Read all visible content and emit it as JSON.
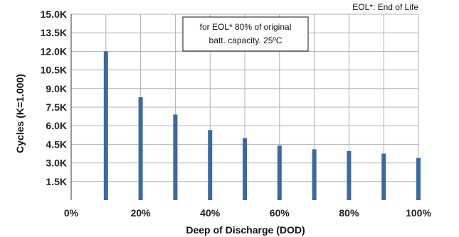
{
  "chart_data": {
    "type": "bar",
    "xlabel": "Deep of Discharge (DOD)",
    "ylabel": "Cycles (K=1.000)",
    "x_ticks": [
      "0%",
      "20%",
      "40%",
      "60%",
      "80%",
      "100%"
    ],
    "y_ticks": [
      "15.0K",
      "13.5K",
      "12.0K",
      "10.5K",
      "9.0K",
      "7.5K",
      "6.0K",
      "4.5K",
      "3.0K",
      "1.5K"
    ],
    "xlim": [
      0,
      100
    ],
    "ylim": [
      0,
      15000
    ],
    "x": [
      10,
      20,
      30,
      40,
      50,
      60,
      70,
      80,
      90,
      100
    ],
    "values": [
      12000,
      8300,
      6900,
      5650,
      5000,
      4400,
      4100,
      3950,
      3750,
      3400
    ],
    "bar_color": "#3a6a9f",
    "grid": true,
    "annotation": {
      "line1": "for EOL* 80% of original",
      "line2": "batt. capacity. 25ºC"
    },
    "footnote": "EOL*: End of Life"
  }
}
